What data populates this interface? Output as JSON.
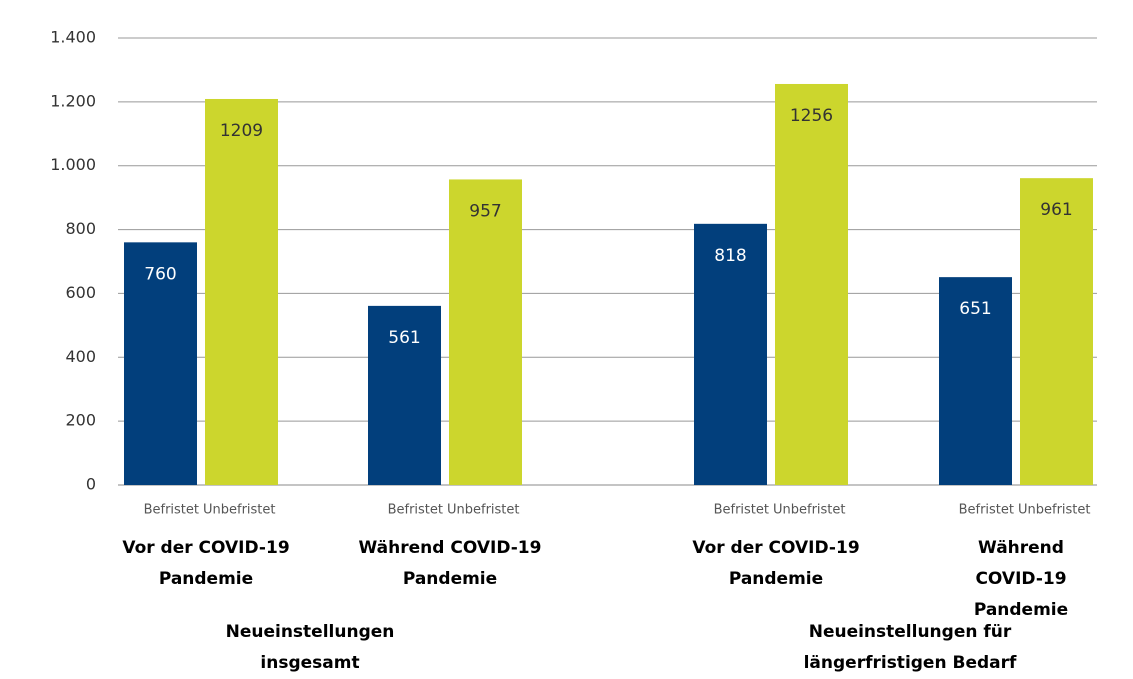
{
  "chart_data": {
    "type": "bar",
    "categories": [
      "Vor der COVID-19\nPandemie",
      "Während COVID-19\nPandemie",
      "Vor der COVID-19\nPandemie",
      "Während COVID-19\nPandemie"
    ],
    "groups": [
      "Neueinstellungen\ninsgesamt",
      "Neueinstellungen für\nlängerfristigen Bedarf"
    ],
    "series": [
      {
        "name": "Befristet",
        "color": "#023f7c",
        "values": [
          760,
          561,
          818,
          651
        ]
      },
      {
        "name": "Unbefristet",
        "color": "#ccd62d",
        "values": [
          1209,
          957,
          1256,
          961
        ]
      }
    ],
    "ylim": [
      0,
      1400
    ],
    "yticks": [
      0,
      200,
      400,
      600,
      800,
      {
        "value": 1000,
        "label": "1.000"
      },
      {
        "value": 1200,
        "label": "1.200"
      },
      {
        "value": 1400,
        "label": "1.400"
      }
    ],
    "grid": true
  }
}
